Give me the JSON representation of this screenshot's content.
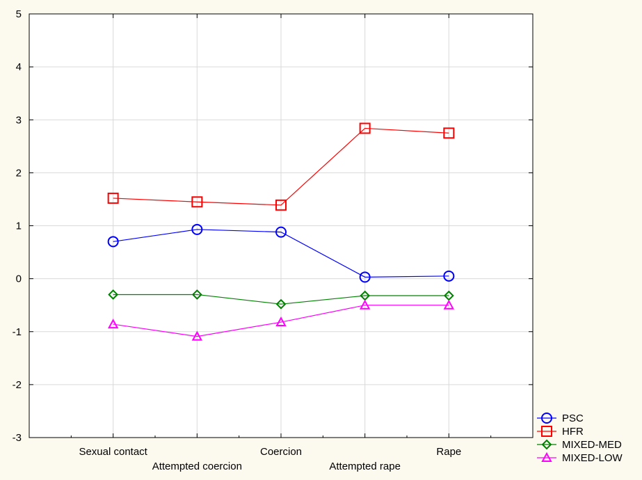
{
  "chart_data": {
    "type": "line",
    "title": "",
    "xlabel": "",
    "ylabel": "",
    "categories": [
      "Sexual contact",
      "Attempted coercion",
      "Coercion",
      "Attempted rape",
      "Rape"
    ],
    "ylim": [
      -3,
      5
    ],
    "yticks": [
      "5",
      "4",
      "3",
      "2",
      "1",
      "0",
      "-1",
      "-2",
      "-3"
    ],
    "ytick_values": [
      5,
      4,
      3,
      2,
      1,
      0,
      -1,
      -2,
      -3
    ],
    "grid": true,
    "legend_position": "bottom-right",
    "series": [
      {
        "name": "PSC",
        "color": "#0000ff",
        "marker": "circle",
        "values": [
          0.7,
          0.93,
          0.88,
          0.03,
          0.05
        ]
      },
      {
        "name": "HFR",
        "color": "#ff0000",
        "marker": "square",
        "values": [
          1.52,
          1.45,
          1.39,
          2.84,
          2.75
        ]
      },
      {
        "name": "MIXED-MED",
        "color": "#008000",
        "marker": "diamond",
        "values": [
          -0.3,
          -0.3,
          -0.48,
          -0.32,
          -0.32
        ]
      },
      {
        "name": "MIXED-LOW",
        "color": "#ff00ff",
        "marker": "triangle",
        "values": [
          -0.86,
          -1.09,
          -0.82,
          -0.5,
          -0.5
        ]
      }
    ]
  }
}
